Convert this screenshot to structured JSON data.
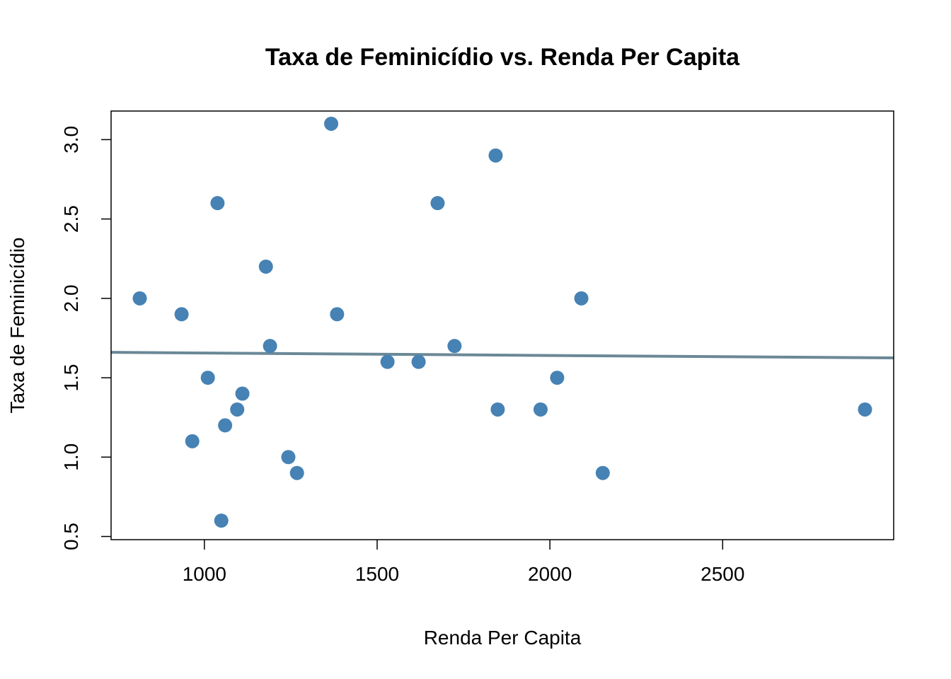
{
  "chart_data": {
    "type": "scatter",
    "title": "Taxa de Feminicídio vs. Renda Per Capita",
    "xlabel": "Renda Per Capita",
    "ylabel": "Taxa de Feminicídio",
    "xlim": [
      730,
      2995
    ],
    "ylim": [
      0.48,
      3.18
    ],
    "x_ticks": [
      1000,
      1500,
      2000,
      2500
    ],
    "x_tick_labels": [
      "1000",
      "1500",
      "2000",
      "2500"
    ],
    "y_ticks": [
      0.5,
      1.0,
      1.5,
      2.0,
      2.5,
      3.0
    ],
    "y_tick_labels": [
      "0.5",
      "1.0",
      "1.5",
      "2.0",
      "2.5",
      "3.0"
    ],
    "grid": false,
    "point_color": "#4682B4",
    "line_color": "#6B8896",
    "points": [
      {
        "x": 813,
        "y": 2.0
      },
      {
        "x": 934,
        "y": 1.9
      },
      {
        "x": 965,
        "y": 1.1
      },
      {
        "x": 1010,
        "y": 1.5
      },
      {
        "x": 1038,
        "y": 2.6
      },
      {
        "x": 1049,
        "y": 0.6
      },
      {
        "x": 1060,
        "y": 1.2
      },
      {
        "x": 1095,
        "y": 1.3
      },
      {
        "x": 1110,
        "y": 1.4
      },
      {
        "x": 1178,
        "y": 2.2
      },
      {
        "x": 1190,
        "y": 1.7
      },
      {
        "x": 1243,
        "y": 1.0
      },
      {
        "x": 1268,
        "y": 0.9
      },
      {
        "x": 1367,
        "y": 3.1
      },
      {
        "x": 1384,
        "y": 1.9
      },
      {
        "x": 1530,
        "y": 1.6
      },
      {
        "x": 1620,
        "y": 1.6
      },
      {
        "x": 1675,
        "y": 2.6
      },
      {
        "x": 1724,
        "y": 1.7
      },
      {
        "x": 1843,
        "y": 2.9
      },
      {
        "x": 1849,
        "y": 1.3
      },
      {
        "x": 1973,
        "y": 1.3
      },
      {
        "x": 2021,
        "y": 1.5
      },
      {
        "x": 2091,
        "y": 2.0
      },
      {
        "x": 2153,
        "y": 0.9
      },
      {
        "x": 2912,
        "y": 1.3
      }
    ],
    "regression_line": {
      "x": [
        730,
        2995
      ],
      "y": [
        1.66,
        1.625
      ]
    }
  }
}
